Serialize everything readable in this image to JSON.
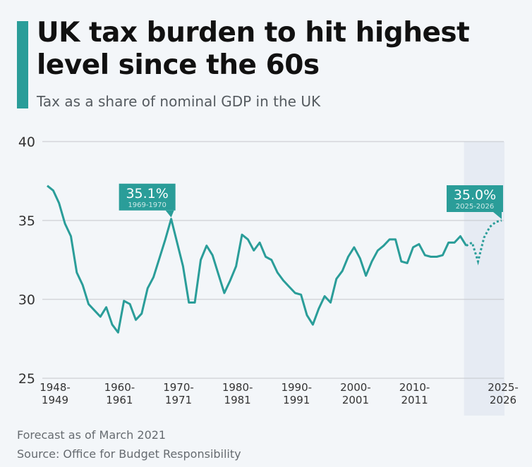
{
  "chart_data": {
    "type": "line",
    "title": "UK tax burden to hit highest level since the 60s",
    "subtitle": "Tax as a share of nominal GDP in the UK",
    "xlabel": "",
    "ylabel": "",
    "ylim": [
      25,
      40
    ],
    "yticks": [
      25,
      30,
      35,
      40
    ],
    "grid": true,
    "xtick_labels": [
      {
        "year": 1948,
        "line1": "1948-",
        "line2": "1949"
      },
      {
        "year": 1960,
        "line1": "1960-",
        "line2": "1961"
      },
      {
        "year": 1970,
        "line1": "1970-",
        "line2": "1971"
      },
      {
        "year": 1980,
        "line1": "1980-",
        "line2": "1981"
      },
      {
        "year": 1990,
        "line1": "1990-",
        "line2": "1991"
      },
      {
        "year": 2000,
        "line1": "2000-",
        "line2": "2001"
      },
      {
        "year": 2010,
        "line1": "2010-",
        "line2": "2011"
      },
      {
        "year": 2025,
        "line1": "2025-",
        "line2": "2026"
      }
    ],
    "x_start": 1948,
    "actual": [
      37.2,
      36.9,
      36.1,
      34.8,
      34.0,
      31.7,
      30.9,
      29.7,
      29.3,
      28.9,
      29.5,
      28.4,
      27.9,
      29.9,
      29.7,
      28.7,
      29.1,
      30.7,
      31.4,
      32.6,
      33.8,
      35.1,
      33.6,
      32.1,
      29.8,
      29.8,
      32.5,
      33.4,
      32.8,
      31.6,
      30.4,
      31.2,
      32.1,
      34.1,
      33.8,
      33.1,
      33.6,
      32.7,
      32.5,
      31.7,
      31.2,
      30.8,
      30.4,
      30.3,
      29.0,
      28.4,
      29.4,
      30.2,
      29.8,
      31.3,
      31.8,
      32.7,
      33.3,
      32.6,
      31.5,
      32.4,
      33.1,
      33.4,
      33.8,
      33.8,
      32.4,
      32.3,
      33.3,
      33.5,
      32.8,
      32.7,
      32.7,
      32.8,
      33.6,
      33.6,
      34.0,
      33.4
    ],
    "forecast_start": 2019,
    "forecast": [
      33.4,
      33.6,
      32.4,
      33.9,
      34.6,
      34.9,
      35.0
    ],
    "forecast_region_from": 2018.5,
    "annotations": [
      {
        "year": 1969,
        "value": 35.1,
        "label": "35.1%",
        "sublabel": "1969-1970"
      },
      {
        "year": 2025,
        "value": 35.0,
        "label": "35.0%",
        "sublabel": "2025-2026"
      }
    ],
    "colors": {
      "line": "#2a9d99",
      "forecast_bg": "#e6ebf3",
      "grid": "#c4c7cb"
    }
  },
  "footer": {
    "note": "Forecast as of March 2021",
    "source": "Source: Office for Budget Responsibility"
  }
}
